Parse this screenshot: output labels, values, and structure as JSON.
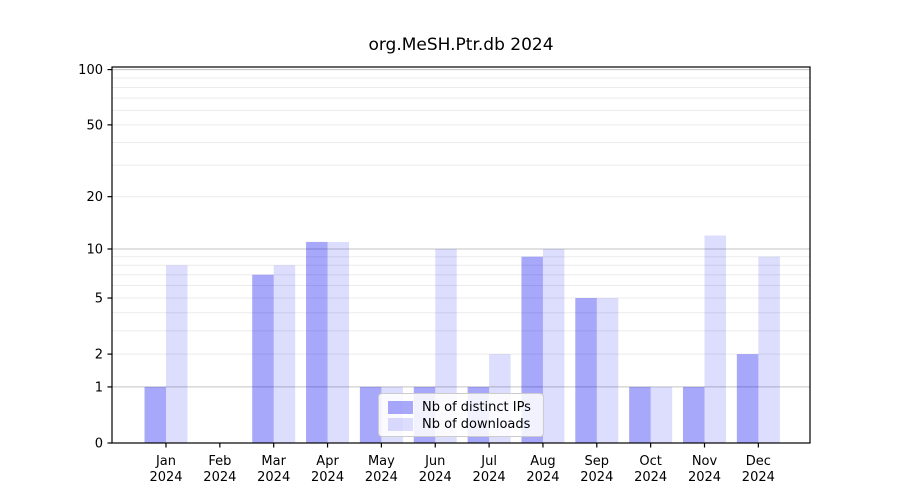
{
  "title": "org.MeSH.Ptr.db 2024",
  "chart_data": {
    "type": "bar",
    "title": "org.MeSH.Ptr.db 2024",
    "categories": [
      "Jan",
      "Feb",
      "Mar",
      "Apr",
      "May",
      "Jun",
      "Jul",
      "Aug",
      "Sep",
      "Oct",
      "Nov",
      "Dec"
    ],
    "year_label": "2024",
    "series": [
      {
        "name": "Nb of distinct IPs",
        "color": "rgba(0,0,240,0.34)",
        "values": [
          1,
          0,
          7,
          11,
          1,
          1,
          1,
          9,
          5,
          1,
          1,
          2
        ]
      },
      {
        "name": "Nb of downloads",
        "color": "rgba(0,0,240,0.135)",
        "values": [
          8,
          0,
          8,
          11,
          1,
          10,
          2,
          10,
          5,
          1,
          12,
          9
        ]
      }
    ],
    "yscale": "log1p",
    "ylim": [
      0,
      104
    ],
    "yticks": [
      0,
      1,
      2,
      5,
      10,
      20,
      50,
      100
    ],
    "grid_major": [
      1,
      10,
      100
    ],
    "grid_minor": [
      2,
      3,
      4,
      5,
      6,
      7,
      8,
      9,
      20,
      30,
      40,
      50,
      60,
      70,
      80,
      90
    ],
    "grid": "on",
    "legend_position": "lower center-right inside plot",
    "colors": {
      "grid_major": "#c3c3c3",
      "grid_minor": "#ebebeb",
      "spine": "#000000",
      "text": "#000000"
    }
  }
}
